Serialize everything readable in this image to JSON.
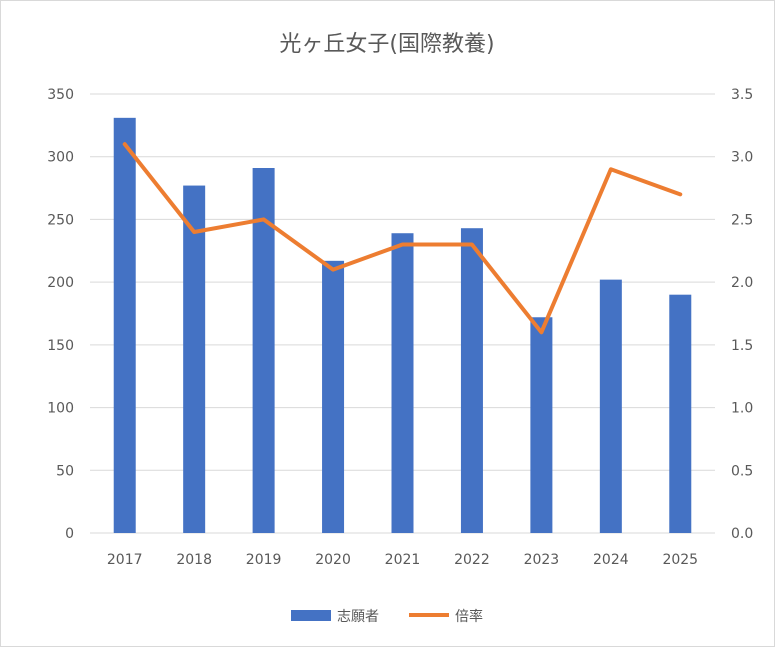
{
  "chart_data": {
    "type": "bar",
    "title": "光ヶ丘女子(国際教養)",
    "categories": [
      "2017",
      "2018",
      "2019",
      "2020",
      "2021",
      "2022",
      "2023",
      "2024",
      "2025"
    ],
    "series": [
      {
        "name": "志願者",
        "type": "bar",
        "axis": "left",
        "color": "#4472C4",
        "values": [
          331,
          277,
          291,
          217,
          239,
          243,
          172,
          202,
          190
        ]
      },
      {
        "name": "倍率",
        "type": "line",
        "axis": "right",
        "color": "#ED7D31",
        "values": [
          3.1,
          2.4,
          2.5,
          2.1,
          2.3,
          2.3,
          1.6,
          2.9,
          2.7
        ]
      }
    ],
    "y_left": {
      "min": 0,
      "max": 350,
      "ticks": [
        "0",
        "50",
        "100",
        "150",
        "200",
        "250",
        "300",
        "350"
      ]
    },
    "y_right": {
      "min": 0,
      "max": 3.5,
      "ticks": [
        "0.0",
        "0.5",
        "1.0",
        "1.5",
        "2.0",
        "2.5",
        "3.0",
        "3.5"
      ]
    },
    "grid": true,
    "legend_position": "bottom"
  }
}
